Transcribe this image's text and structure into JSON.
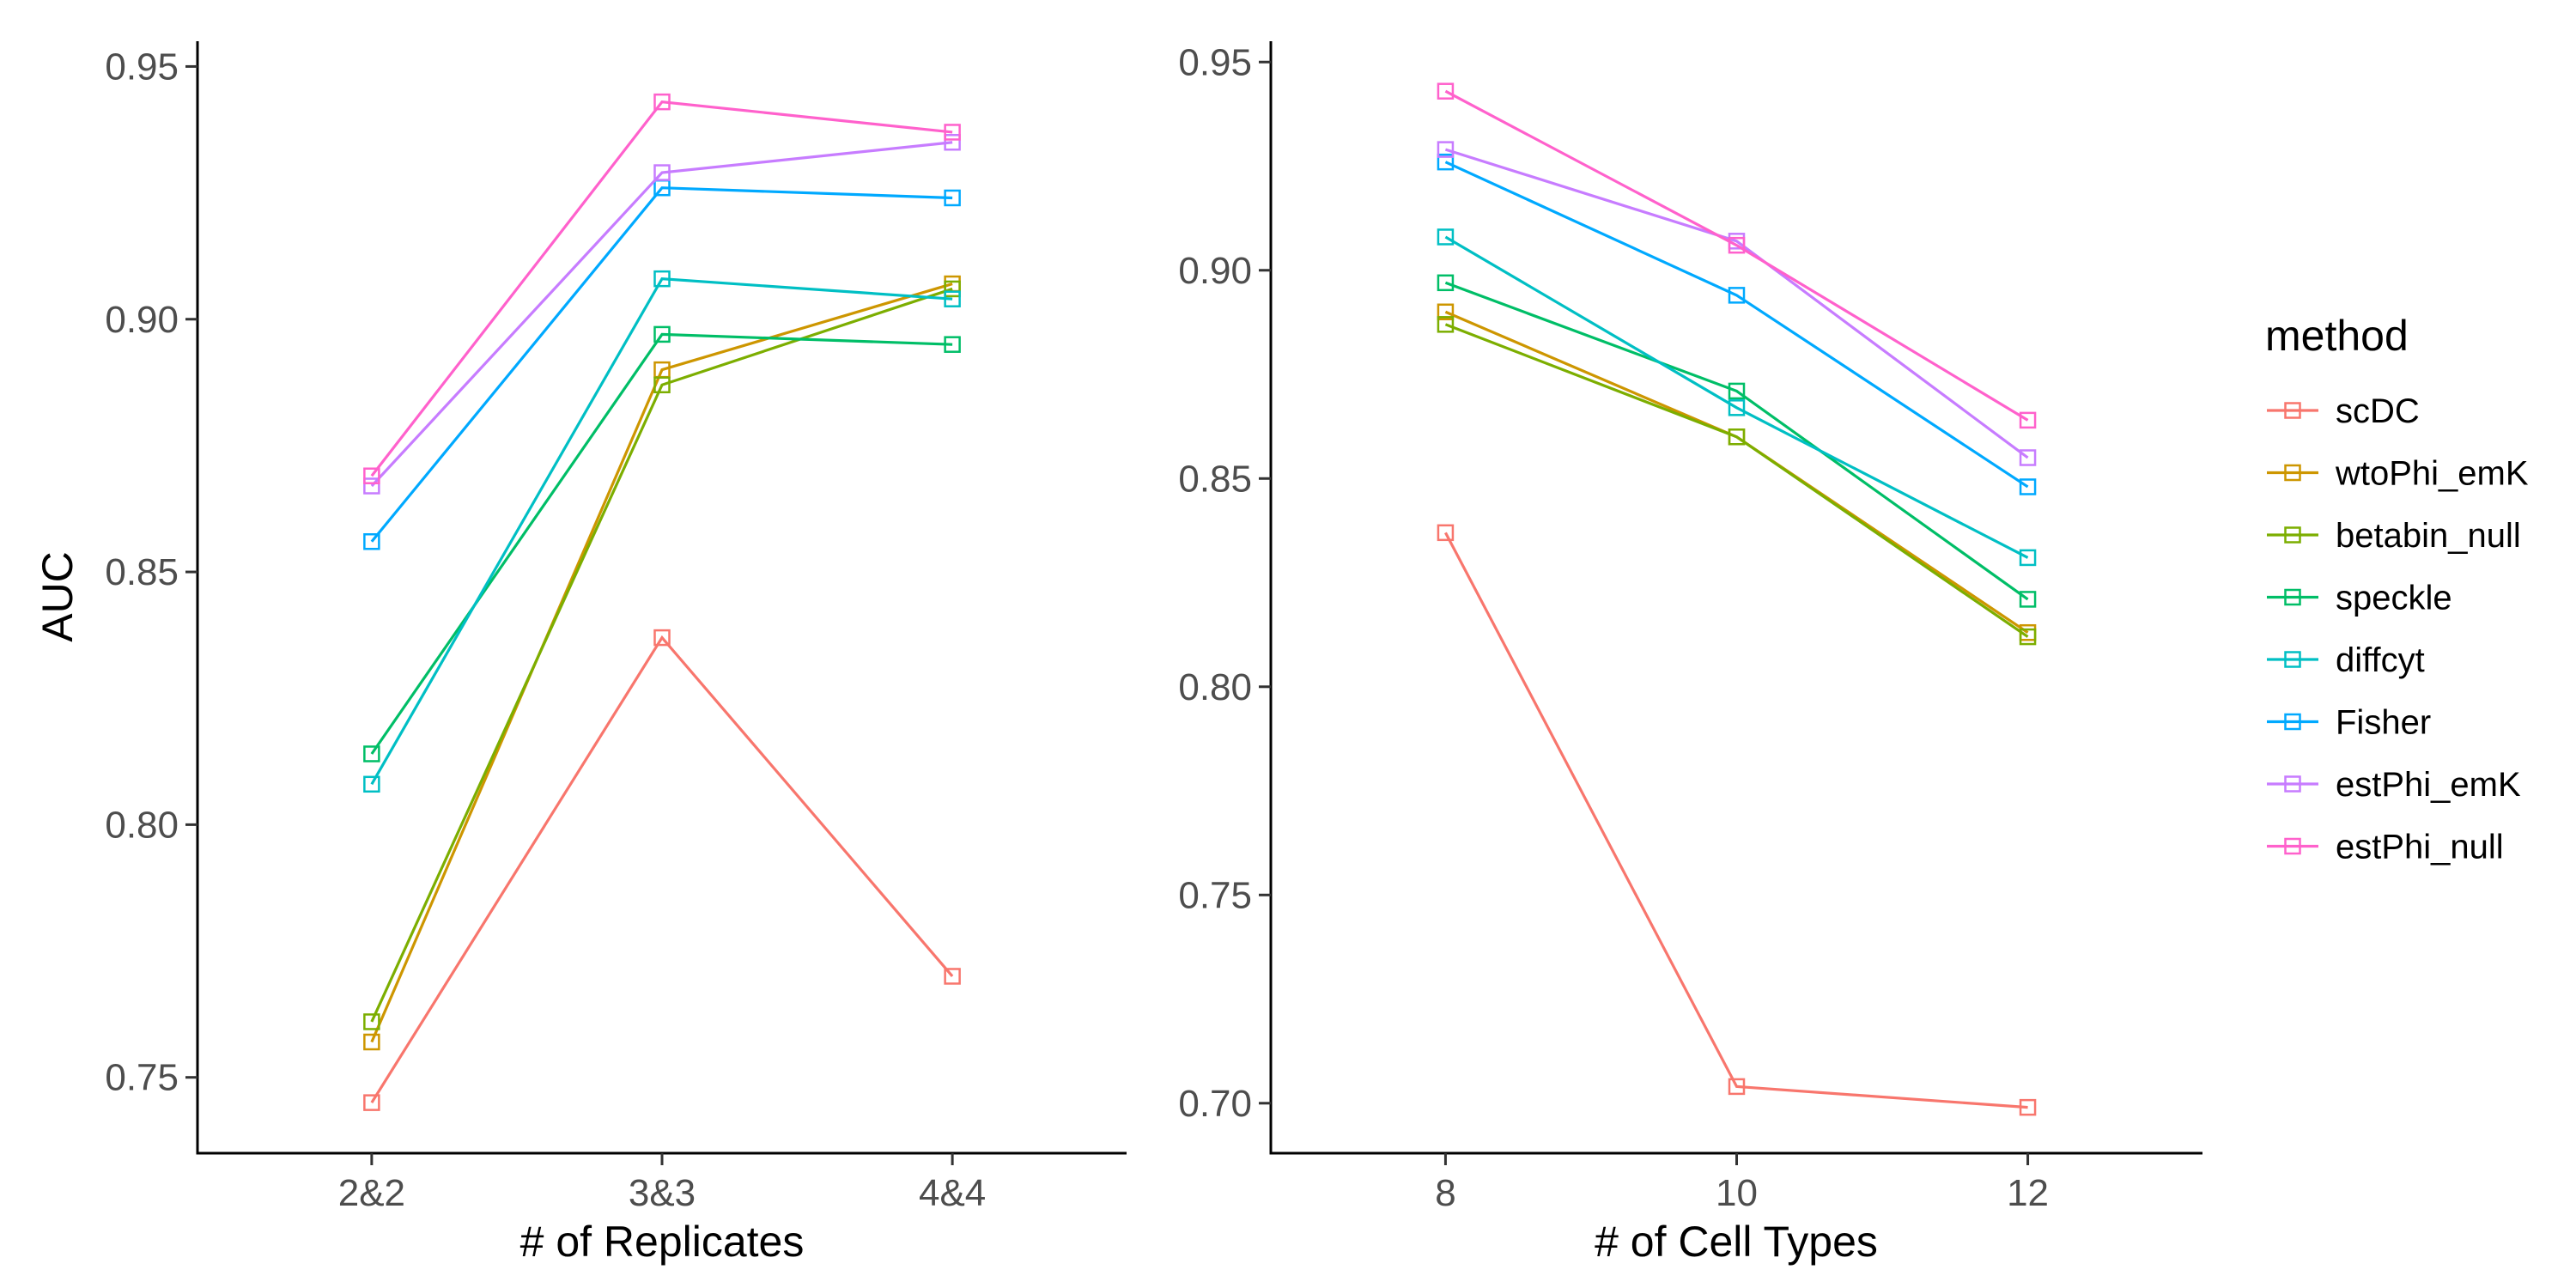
{
  "chart_data": [
    {
      "type": "line",
      "panel": "left",
      "xlabel": "# of Replicates",
      "ylabel": "AUC",
      "categories": [
        "2&2",
        "3&3",
        "4&4"
      ],
      "ylim": [
        0.735,
        0.955
      ],
      "yticks": [
        0.75,
        0.8,
        0.85,
        0.9,
        0.95
      ],
      "ytick_labels": [
        "0.75",
        "0.80",
        "0.85",
        "0.90",
        "0.95"
      ],
      "grid": false,
      "marker": "open-square",
      "series": [
        {
          "name": "scDC",
          "values": [
            0.745,
            0.837,
            0.77
          ]
        },
        {
          "name": "wtoPhi_emK",
          "values": [
            0.757,
            0.89,
            0.907
          ]
        },
        {
          "name": "betabin_null",
          "values": [
            0.761,
            0.887,
            0.906
          ]
        },
        {
          "name": "speckle",
          "values": [
            0.814,
            0.897,
            0.895
          ]
        },
        {
          "name": "diffcyt",
          "values": [
            0.808,
            0.908,
            0.904
          ]
        },
        {
          "name": "Fisher",
          "values": [
            0.856,
            0.926,
            0.924
          ]
        },
        {
          "name": "estPhi_emK",
          "values": [
            0.867,
            0.929,
            0.935
          ]
        },
        {
          "name": "estPhi_null",
          "values": [
            0.869,
            0.943,
            0.937
          ]
        }
      ]
    },
    {
      "type": "line",
      "panel": "right",
      "xlabel": "# of Cell Types",
      "ylabel": "",
      "x": [
        8,
        10,
        12
      ],
      "xlim": [
        6.8,
        13.2
      ],
      "xticks": [
        8,
        10,
        12
      ],
      "xtick_labels": [
        "8",
        "10",
        "12"
      ],
      "ylim": [
        0.688,
        0.955
      ],
      "yticks": [
        0.7,
        0.75,
        0.8,
        0.85,
        0.9,
        0.95
      ],
      "ytick_labels": [
        "0.70",
        "0.75",
        "0.80",
        "0.85",
        "0.90",
        "0.95"
      ],
      "grid": false,
      "marker": "open-square",
      "series": [
        {
          "name": "scDC",
          "values": [
            0.837,
            0.704,
            0.699
          ]
        },
        {
          "name": "wtoPhi_emK",
          "values": [
            0.89,
            0.86,
            0.813
          ]
        },
        {
          "name": "betabin_null",
          "values": [
            0.887,
            0.86,
            0.812
          ]
        },
        {
          "name": "speckle",
          "values": [
            0.897,
            0.871,
            0.821
          ]
        },
        {
          "name": "diffcyt",
          "values": [
            0.908,
            0.867,
            0.831
          ]
        },
        {
          "name": "Fisher",
          "values": [
            0.926,
            0.894,
            0.848
          ]
        },
        {
          "name": "estPhi_emK",
          "values": [
            0.929,
            0.907,
            0.855
          ]
        },
        {
          "name": "estPhi_null",
          "values": [
            0.943,
            0.906,
            0.864
          ]
        }
      ]
    }
  ],
  "legend": {
    "title": "method",
    "placement": "right",
    "items": [
      "scDC",
      "wtoPhi_emK",
      "betabin_null",
      "speckle",
      "diffcyt",
      "Fisher",
      "estPhi_emK",
      "estPhi_null"
    ],
    "colors": [
      "#F8766D",
      "#CD9600",
      "#7CAE00",
      "#00BE67",
      "#00BFC4",
      "#00A9FF",
      "#C77CFF",
      "#FF61CC"
    ]
  }
}
